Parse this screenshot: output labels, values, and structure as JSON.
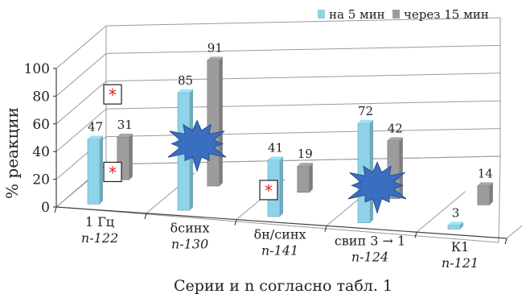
{
  "chart_data": {
    "type": "bar",
    "style": "3d-clustered-column",
    "ylabel": "% реакции",
    "xlabel": "Серии и n согласно табл. 1",
    "ylim": [
      0,
      100
    ],
    "yticks": [
      "0",
      "20",
      "40",
      "60",
      "80",
      "100"
    ],
    "grid": true,
    "legend_position": "top-right",
    "categories": [
      {
        "main": "1 Гц",
        "n": "n-122"
      },
      {
        "main": "δсинх",
        "n": "n-130"
      },
      {
        "main": "δн/синх",
        "n": "n-141"
      },
      {
        "main": "свип 3 → 1",
        "n": "n-124"
      },
      {
        "main": "К1",
        "n": "n-121"
      }
    ],
    "series": [
      {
        "name": "на 5 мин",
        "values": [
          47,
          85,
          41,
          72,
          3
        ],
        "color": "#8fd3e8"
      },
      {
        "name": "через 15 мин",
        "values": [
          31,
          91,
          19,
          42,
          14
        ],
        "color": "#9c9c9c"
      }
    ],
    "annotations": {
      "significance_marks": [
        {
          "text": "*",
          "category": 0,
          "value": 78
        },
        {
          "text": "*",
          "category": 0,
          "value": 22
        },
        {
          "text": "*",
          "category": 2,
          "value": 18
        }
      ],
      "starbursts": [
        {
          "category": 1,
          "value": 48
        },
        {
          "category": 3,
          "value": 27
        }
      ]
    },
    "mark_color": "#e02020",
    "burst_color": "#3a6ec0"
  }
}
